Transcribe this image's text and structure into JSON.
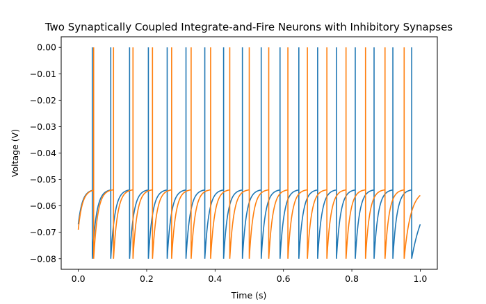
{
  "chart_data": {
    "type": "line",
    "title": "Two Synaptically Coupled Integrate-and-Fire Neurons with Inhibitory Synapses",
    "xlabel": "Time (s)",
    "ylabel": "Voltage (V)",
    "xlim": [
      -0.05,
      1.05
    ],
    "ylim": [
      -0.084,
      0.004
    ],
    "x_ticks": [
      0.0,
      0.2,
      0.4,
      0.6,
      0.8,
      1.0
    ],
    "x_tick_labels": [
      "0.0",
      "0.2",
      "0.4",
      "0.6",
      "0.8",
      "1.0"
    ],
    "y_ticks": [
      0.0,
      -0.01,
      -0.02,
      -0.03,
      -0.04,
      -0.05,
      -0.06,
      -0.07,
      -0.08
    ],
    "y_tick_labels": [
      "0.00",
      "−0.01",
      "−0.02",
      "−0.03",
      "−0.04",
      "−0.05",
      "−0.06",
      "−0.07",
      "−0.08"
    ],
    "grid": false,
    "legend": "none",
    "model": {
      "spike_peak": 0.0,
      "reset": -0.08,
      "threshold_approx": -0.054
    },
    "series": [
      {
        "color": "#1f77b4",
        "start_voltage": -0.067,
        "end_voltage": -0.067,
        "spike_times": [
          0.041,
          0.095,
          0.15,
          0.205,
          0.26,
          0.315,
          0.37,
          0.425,
          0.48,
          0.535,
          0.59,
          0.645,
          0.7,
          0.755,
          0.81,
          0.865,
          0.92,
          0.975
        ]
      },
      {
        "color": "#ff7f0e",
        "start_voltage": -0.069,
        "end_voltage": -0.056,
        "spike_times": [
          0.045,
          0.103,
          0.16,
          0.217,
          0.273,
          0.33,
          0.387,
          0.443,
          0.5,
          0.557,
          0.613,
          0.67,
          0.727,
          0.783,
          0.84,
          0.897,
          0.953
        ]
      }
    ]
  }
}
